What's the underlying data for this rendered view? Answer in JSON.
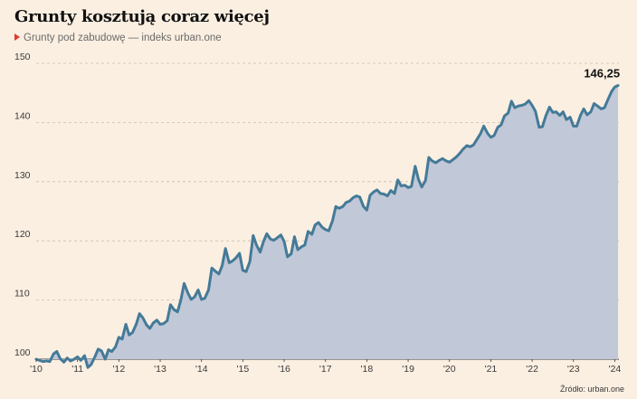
{
  "chart_data": {
    "type": "area",
    "title": "Grunty kosztują coraz więcej",
    "subtitle": "Grunty pod zabudowę — indeks urban.one",
    "xlabel": "",
    "ylabel": "",
    "ylim": [
      100,
      150
    ],
    "yticks": [
      100,
      110,
      120,
      130,
      140,
      150
    ],
    "xlim": [
      2010.0,
      2024.1
    ],
    "xticks": [
      {
        "value": 2010,
        "label": "'10"
      },
      {
        "value": 2011,
        "label": "'11"
      },
      {
        "value": 2012,
        "label": "'12"
      },
      {
        "value": 2013,
        "label": "'13"
      },
      {
        "value": 2014,
        "label": "'14"
      },
      {
        "value": 2015,
        "label": "'15"
      },
      {
        "value": 2016,
        "label": "'16"
      },
      {
        "value": 2017,
        "label": "'17"
      },
      {
        "value": 2018,
        "label": "'18"
      },
      {
        "value": 2019,
        "label": "'19"
      },
      {
        "value": 2020,
        "label": "'20"
      },
      {
        "value": 2021,
        "label": "'21"
      },
      {
        "value": 2022,
        "label": "'22"
      },
      {
        "value": 2023,
        "label": "'23"
      },
      {
        "value": 2024,
        "label": "'24"
      }
    ],
    "grid": true,
    "line_color": "#447a98",
    "fill_color": "#c1c8d8",
    "grid_color": "#c7bfb4",
    "end_label": "146,25",
    "source": "Źródło: urban.one",
    "series": [
      {
        "x": [
          2010.0,
          2010.08,
          2010.17,
          2010.25,
          2010.33,
          2010.42,
          2010.5,
          2010.58,
          2010.67,
          2010.75,
          2010.83,
          2010.92,
          2011.0,
          2011.08,
          2011.17,
          2011.25,
          2011.33,
          2011.42,
          2011.5,
          2011.58,
          2011.67,
          2011.75,
          2011.83,
          2011.92,
          2012.0,
          2012.08,
          2012.17,
          2012.25,
          2012.33,
          2012.42,
          2012.5,
          2012.58,
          2012.67,
          2012.75,
          2012.83,
          2012.92,
          2013.0,
          2013.08,
          2013.17,
          2013.25,
          2013.33,
          2013.42,
          2013.5,
          2013.58,
          2013.67,
          2013.75,
          2013.83,
          2013.92,
          2014.0,
          2014.08,
          2014.17,
          2014.25,
          2014.33,
          2014.42,
          2014.5,
          2014.58,
          2014.67,
          2014.75,
          2014.83,
          2014.92,
          2015.0,
          2015.08,
          2015.17,
          2015.25,
          2015.33,
          2015.42,
          2015.5,
          2015.58,
          2015.67,
          2015.75,
          2015.83,
          2015.92,
          2016.0,
          2016.08,
          2016.17,
          2016.25,
          2016.33,
          2016.42,
          2016.5,
          2016.58,
          2016.67,
          2016.75,
          2016.83,
          2016.92,
          2017.0,
          2017.08,
          2017.17,
          2017.25,
          2017.33,
          2017.42,
          2017.5,
          2017.58,
          2017.67,
          2017.75,
          2017.83,
          2017.92,
          2018.0,
          2018.08,
          2018.17,
          2018.25,
          2018.33,
          2018.42,
          2018.5,
          2018.58,
          2018.67,
          2018.75,
          2018.83,
          2018.92,
          2019.0,
          2019.08,
          2019.17,
          2019.25,
          2019.33,
          2019.42,
          2019.5,
          2019.58,
          2019.67,
          2019.75,
          2019.83,
          2019.92,
          2020.0,
          2020.08,
          2020.17,
          2020.25,
          2020.33,
          2020.42,
          2020.5,
          2020.58,
          2020.67,
          2020.75,
          2020.83,
          2020.92,
          2021.0,
          2021.08,
          2021.17,
          2021.25,
          2021.33,
          2021.42,
          2021.5,
          2021.58,
          2021.67,
          2021.75,
          2021.83,
          2021.92,
          2022.0,
          2022.08,
          2022.17,
          2022.25,
          2022.33,
          2022.42,
          2022.5,
          2022.58,
          2022.67,
          2022.75,
          2022.83,
          2022.92,
          2023.0,
          2023.08,
          2023.17,
          2023.25,
          2023.33,
          2023.42,
          2023.5,
          2023.58,
          2023.67,
          2023.75,
          2023.83,
          2023.92,
          2024.0,
          2024.08
        ],
        "values": [
          100.0,
          99.8,
          99.6,
          99.7,
          99.6,
          100.9,
          101.3,
          100.1,
          99.5,
          100.2,
          99.7,
          100.0,
          100.4,
          99.8,
          100.6,
          98.6,
          99.1,
          100.4,
          101.7,
          101.4,
          100.0,
          101.6,
          101.3,
          102.1,
          103.7,
          103.4,
          105.9,
          104.1,
          104.5,
          105.9,
          107.7,
          107.0,
          105.8,
          105.2,
          106.1,
          106.6,
          105.9,
          106.0,
          106.5,
          109.2,
          108.4,
          108.0,
          110.0,
          112.8,
          111.2,
          110.1,
          110.5,
          111.7,
          110.1,
          110.3,
          111.7,
          115.4,
          114.9,
          114.4,
          115.8,
          118.7,
          116.3,
          116.6,
          117.1,
          117.9,
          115.0,
          114.8,
          116.5,
          120.9,
          119.3,
          118.1,
          119.9,
          121.2,
          120.3,
          120.1,
          120.5,
          121.0,
          119.9,
          117.3,
          117.8,
          120.7,
          118.5,
          119.0,
          119.3,
          121.6,
          121.1,
          122.7,
          123.1,
          122.3,
          121.9,
          121.7,
          123.4,
          125.8,
          125.5,
          125.8,
          126.5,
          126.7,
          127.3,
          127.6,
          127.4,
          125.8,
          125.2,
          127.7,
          128.3,
          128.6,
          128.0,
          127.9,
          127.6,
          128.5,
          128.0,
          130.3,
          129.3,
          129.4,
          129.0,
          129.2,
          132.6,
          130.4,
          129.1,
          130.2,
          134.1,
          133.5,
          133.2,
          133.6,
          133.9,
          133.5,
          133.3,
          133.7,
          134.2,
          134.8,
          135.5,
          136.1,
          135.9,
          136.2,
          137.2,
          138.1,
          139.4,
          138.2,
          137.5,
          137.8,
          139.2,
          139.6,
          141.1,
          141.6,
          143.6,
          142.5,
          142.8,
          142.9,
          143.1,
          143.7,
          142.9,
          141.9,
          139.2,
          139.3,
          141.1,
          142.6,
          141.7,
          141.8,
          141.2,
          141.8,
          140.5,
          140.9,
          139.4,
          139.4,
          141.2,
          142.3,
          141.3,
          141.8,
          143.2,
          142.8,
          142.3,
          142.5,
          143.8,
          145.2,
          146.0,
          146.25
        ]
      }
    ]
  }
}
